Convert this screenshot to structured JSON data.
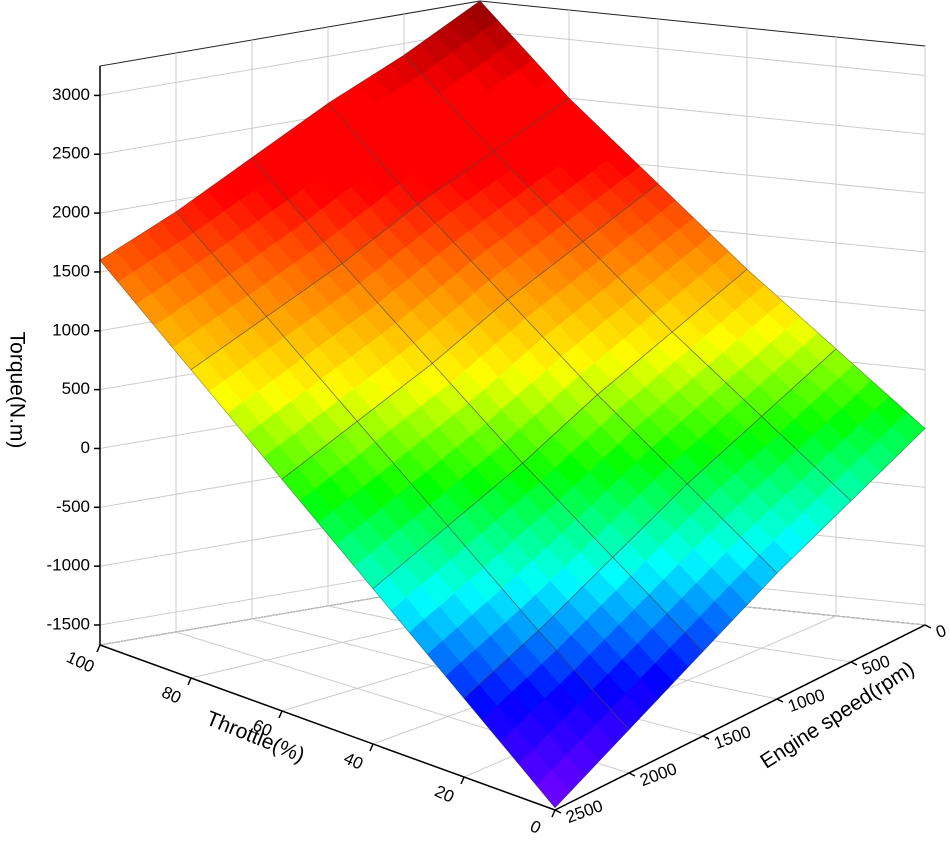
{
  "chart_data": {
    "type": "surface",
    "xlabel": "Throttle(%)",
    "ylabel": "Engine speed(rpm)",
    "zlabel": "Torque(N.m)",
    "x": [
      0,
      20,
      40,
      60,
      80,
      100
    ],
    "y": [
      0,
      500,
      1000,
      1500,
      2000,
      2500
    ],
    "z": [
      [
        0,
        -300,
        -600,
        -950,
        -1300,
        -1650
      ],
      [
        600,
        300,
        0,
        -350,
        -700,
        -1000
      ],
      [
        1200,
        900,
        600,
        250,
        -50,
        -350
      ],
      [
        1850,
        1550,
        1250,
        900,
        600,
        300
      ],
      [
        2500,
        2200,
        1900,
        1550,
        1250,
        950
      ],
      [
        3250,
        2900,
        2600,
        2250,
        1900,
        1600
      ]
    ],
    "xlim": [
      0,
      100
    ],
    "ylim": [
      0,
      2500
    ],
    "zlim": [
      -1670,
      3250
    ],
    "xticks": [
      0,
      20,
      40,
      60,
      80,
      100
    ],
    "yticks": [
      0,
      500,
      1000,
      1500,
      2000,
      2500
    ],
    "zticks": [
      -1500,
      -1000,
      -500,
      0,
      500,
      1000,
      1500,
      2000,
      2500,
      3000
    ],
    "grid": true,
    "colormap": [
      "#7f00ff",
      "#0000ff",
      "#00ffff",
      "#00ff00",
      "#ffff00",
      "#ff8000",
      "#ff0000",
      "#ff0000",
      "#8b0000"
    ]
  }
}
